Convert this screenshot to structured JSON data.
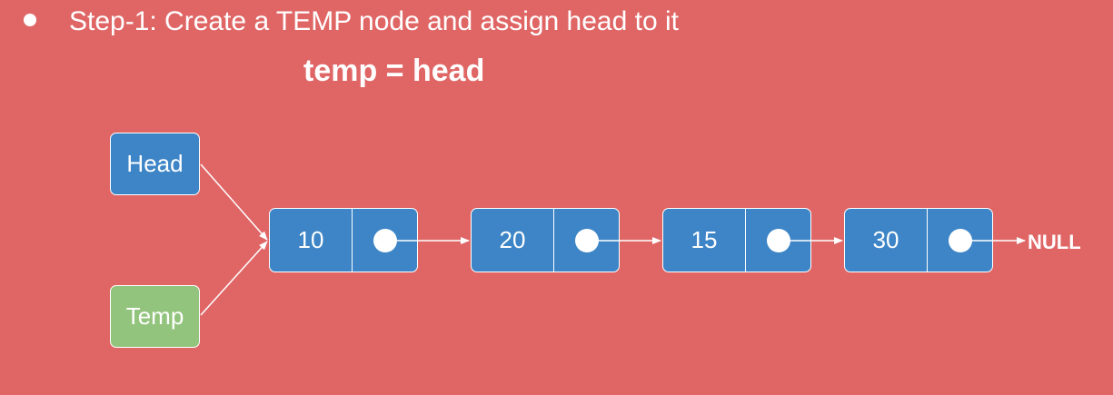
{
  "slide": {
    "bullet_text": "Step-1: Create a TEMP node and assign head to it",
    "code": "temp = head"
  },
  "pointers": {
    "head_label": "Head",
    "temp_label": "Temp"
  },
  "nodes": [
    {
      "value": "10"
    },
    {
      "value": "20"
    },
    {
      "value": "15"
    },
    {
      "value": "30"
    }
  ],
  "null_label": "NULL",
  "colors": {
    "background": "#e06666",
    "node": "#3d85c6",
    "temp": "#93c47d",
    "text": "#ffffff"
  }
}
